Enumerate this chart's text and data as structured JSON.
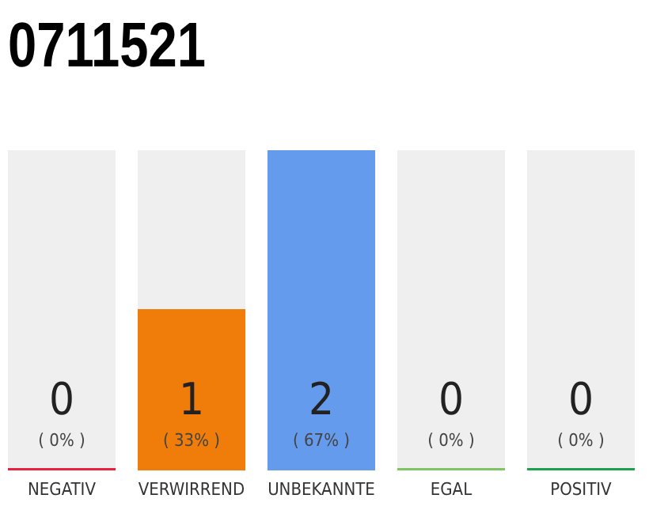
{
  "chart_data": {
    "type": "bar",
    "title": "0711521",
    "categories": [
      "NEGATIV",
      "VERWIRREND",
      "UNBEKANNTE",
      "EGAL",
      "POSITIV"
    ],
    "values": [
      0,
      1,
      2,
      0,
      0
    ],
    "colors": [
      "#e8213f",
      "#f07d0a",
      "#659bed",
      "#7dc462",
      "#1aa34a"
    ],
    "ylim": [
      0,
      2
    ],
    "value_labels": [
      "0\n( 0% )",
      "1\n( 33% )",
      "2\n( 67% )",
      "0\n( 0% )",
      "0\n( 0% )"
    ]
  }
}
